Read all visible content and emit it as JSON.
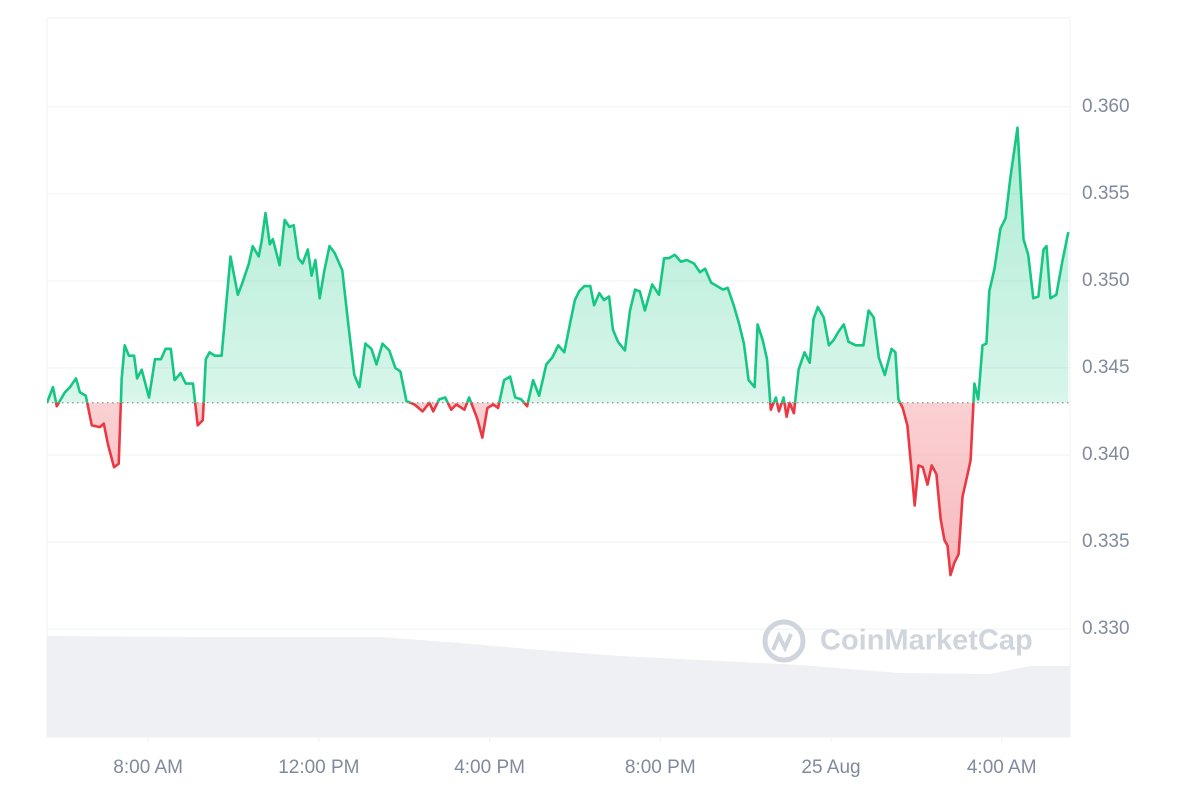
{
  "chart_data": {
    "type": "line",
    "watermark": "CoinMarketCap",
    "baseline": 0.343,
    "up_color": "#16c784",
    "down_color": "#ea3943",
    "grid": true,
    "xlim": [
      5.63,
      29.6
    ],
    "ylim": [
      0.3238,
      0.3651
    ],
    "xticks": [
      {
        "value": 8,
        "label": "8:00 AM"
      },
      {
        "value": 12,
        "label": "12:00 PM"
      },
      {
        "value": 16,
        "label": "4:00 PM"
      },
      {
        "value": 20,
        "label": "8:00 PM"
      },
      {
        "value": 24,
        "label": "25 Aug"
      },
      {
        "value": 28,
        "label": "4:00 AM"
      }
    ],
    "yticks": [
      {
        "value": 0.33,
        "label": "0.330"
      },
      0.335,
      {
        "value": 0.34,
        "label": "0.340"
      },
      0.345,
      {
        "value": 0.35,
        "label": "0.350"
      },
      0.355,
      {
        "value": 0.36,
        "label": "0.360"
      }
    ],
    "x": [
      5.63,
      5.77,
      5.86,
      6.05,
      6.17,
      6.31,
      6.4,
      6.54,
      6.68,
      6.87,
      6.96,
      7.06,
      7.2,
      7.31,
      7.38,
      7.45,
      7.55,
      7.67,
      7.74,
      7.85,
      8.02,
      8.16,
      8.3,
      8.41,
      8.53,
      8.62,
      8.76,
      8.88,
      9.05,
      9.16,
      9.28,
      9.35,
      9.44,
      9.56,
      9.72,
      9.93,
      10.1,
      10.21,
      10.36,
      10.45,
      10.59,
      10.66,
      10.75,
      10.85,
      10.92,
      11.08,
      11.2,
      11.31,
      11.41,
      11.52,
      11.62,
      11.74,
      11.83,
      11.92,
      12.02,
      12.13,
      12.25,
      12.37,
      12.55,
      12.69,
      12.83,
      12.95,
      13.09,
      13.23,
      13.35,
      13.49,
      13.65,
      13.79,
      13.91,
      14.05,
      14.24,
      14.43,
      14.59,
      14.68,
      14.82,
      14.96,
      15.1,
      15.22,
      15.41,
      15.52,
      15.71,
      15.83,
      15.95,
      16.09,
      16.2,
      16.34,
      16.48,
      16.6,
      16.74,
      16.88,
      17.02,
      17.16,
      17.33,
      17.47,
      17.61,
      17.75,
      17.89,
      18.0,
      18.1,
      18.22,
      18.36,
      18.45,
      18.57,
      18.68,
      18.8,
      18.89,
      19.01,
      19.17,
      19.29,
      19.41,
      19.52,
      19.64,
      19.81,
      19.97,
      20.09,
      20.2,
      20.34,
      20.48,
      20.62,
      20.79,
      20.93,
      21.05,
      21.19,
      21.33,
      21.47,
      21.58,
      21.72,
      21.84,
      21.96,
      22.07,
      22.21,
      22.28,
      22.4,
      22.5,
      22.59,
      22.71,
      22.78,
      22.89,
      22.96,
      23.03,
      23.13,
      23.24,
      23.38,
      23.5,
      23.59,
      23.69,
      23.83,
      23.95,
      24.06,
      24.18,
      24.3,
      24.41,
      24.58,
      24.76,
      24.88,
      25.0,
      25.12,
      25.26,
      25.42,
      25.51,
      25.58,
      25.68,
      25.79,
      25.89,
      25.96,
      26.05,
      26.15,
      26.26,
      26.36,
      26.47,
      26.57,
      26.66,
      26.73,
      26.8,
      26.89,
      26.99,
      27.08,
      27.2,
      27.27,
      27.36,
      27.45,
      27.55,
      27.64,
      27.71,
      27.83,
      27.97,
      28.09,
      28.2,
      28.37,
      28.51,
      28.62,
      28.74,
      28.86,
      28.98,
      29.05,
      29.14,
      29.28,
      29.42,
      29.56
    ],
    "values": [
      0.343,
      0.3439,
      0.3428,
      0.3436,
      0.3439,
      0.3444,
      0.3436,
      0.3434,
      0.3417,
      0.3416,
      0.3418,
      0.3406,
      0.3393,
      0.3395,
      0.3444,
      0.3463,
      0.3457,
      0.3457,
      0.3444,
      0.3449,
      0.3433,
      0.3455,
      0.3455,
      0.3461,
      0.3461,
      0.3443,
      0.3447,
      0.3441,
      0.3441,
      0.3417,
      0.342,
      0.3455,
      0.3459,
      0.3457,
      0.3457,
      0.3514,
      0.3492,
      0.3499,
      0.351,
      0.352,
      0.3514,
      0.3523,
      0.3539,
      0.3521,
      0.3524,
      0.3509,
      0.3535,
      0.3531,
      0.3532,
      0.3513,
      0.351,
      0.3518,
      0.3503,
      0.3512,
      0.349,
      0.3506,
      0.352,
      0.3516,
      0.3506,
      0.3475,
      0.3446,
      0.3439,
      0.3464,
      0.3461,
      0.3452,
      0.3464,
      0.346,
      0.345,
      0.3448,
      0.3431,
      0.3429,
      0.3425,
      0.343,
      0.3425,
      0.3432,
      0.3433,
      0.3426,
      0.3429,
      0.3426,
      0.3433,
      0.3421,
      0.341,
      0.3427,
      0.3429,
      0.3427,
      0.3443,
      0.3445,
      0.3433,
      0.3432,
      0.3428,
      0.3443,
      0.3434,
      0.3452,
      0.3456,
      0.3463,
      0.3459,
      0.3476,
      0.3489,
      0.3494,
      0.3497,
      0.3497,
      0.3486,
      0.3493,
      0.3489,
      0.3491,
      0.3472,
      0.3465,
      0.346,
      0.3483,
      0.3495,
      0.3494,
      0.3483,
      0.3498,
      0.3492,
      0.3513,
      0.3513,
      0.3515,
      0.3511,
      0.3512,
      0.351,
      0.3505,
      0.3507,
      0.3499,
      0.3497,
      0.3495,
      0.3496,
      0.3486,
      0.3476,
      0.3464,
      0.3443,
      0.3439,
      0.3475,
      0.3466,
      0.3455,
      0.3426,
      0.3433,
      0.3425,
      0.3433,
      0.3422,
      0.343,
      0.3424,
      0.3449,
      0.3459,
      0.3453,
      0.3478,
      0.3485,
      0.3479,
      0.3463,
      0.3466,
      0.3471,
      0.3475,
      0.3465,
      0.3463,
      0.3463,
      0.3483,
      0.3479,
      0.3456,
      0.3446,
      0.3461,
      0.3459,
      0.3432,
      0.3427,
      0.3417,
      0.339,
      0.3371,
      0.3394,
      0.3393,
      0.3383,
      0.3394,
      0.3389,
      0.3363,
      0.3351,
      0.3348,
      0.3331,
      0.3338,
      0.3343,
      0.3376,
      0.3389,
      0.3397,
      0.3441,
      0.3432,
      0.3463,
      0.3464,
      0.3494,
      0.3507,
      0.353,
      0.3536,
      0.3559,
      0.3588,
      0.3524,
      0.3515,
      0.349,
      0.3491,
      0.3518,
      0.352,
      0.349,
      0.3492,
      0.3511,
      0.3528
    ]
  }
}
